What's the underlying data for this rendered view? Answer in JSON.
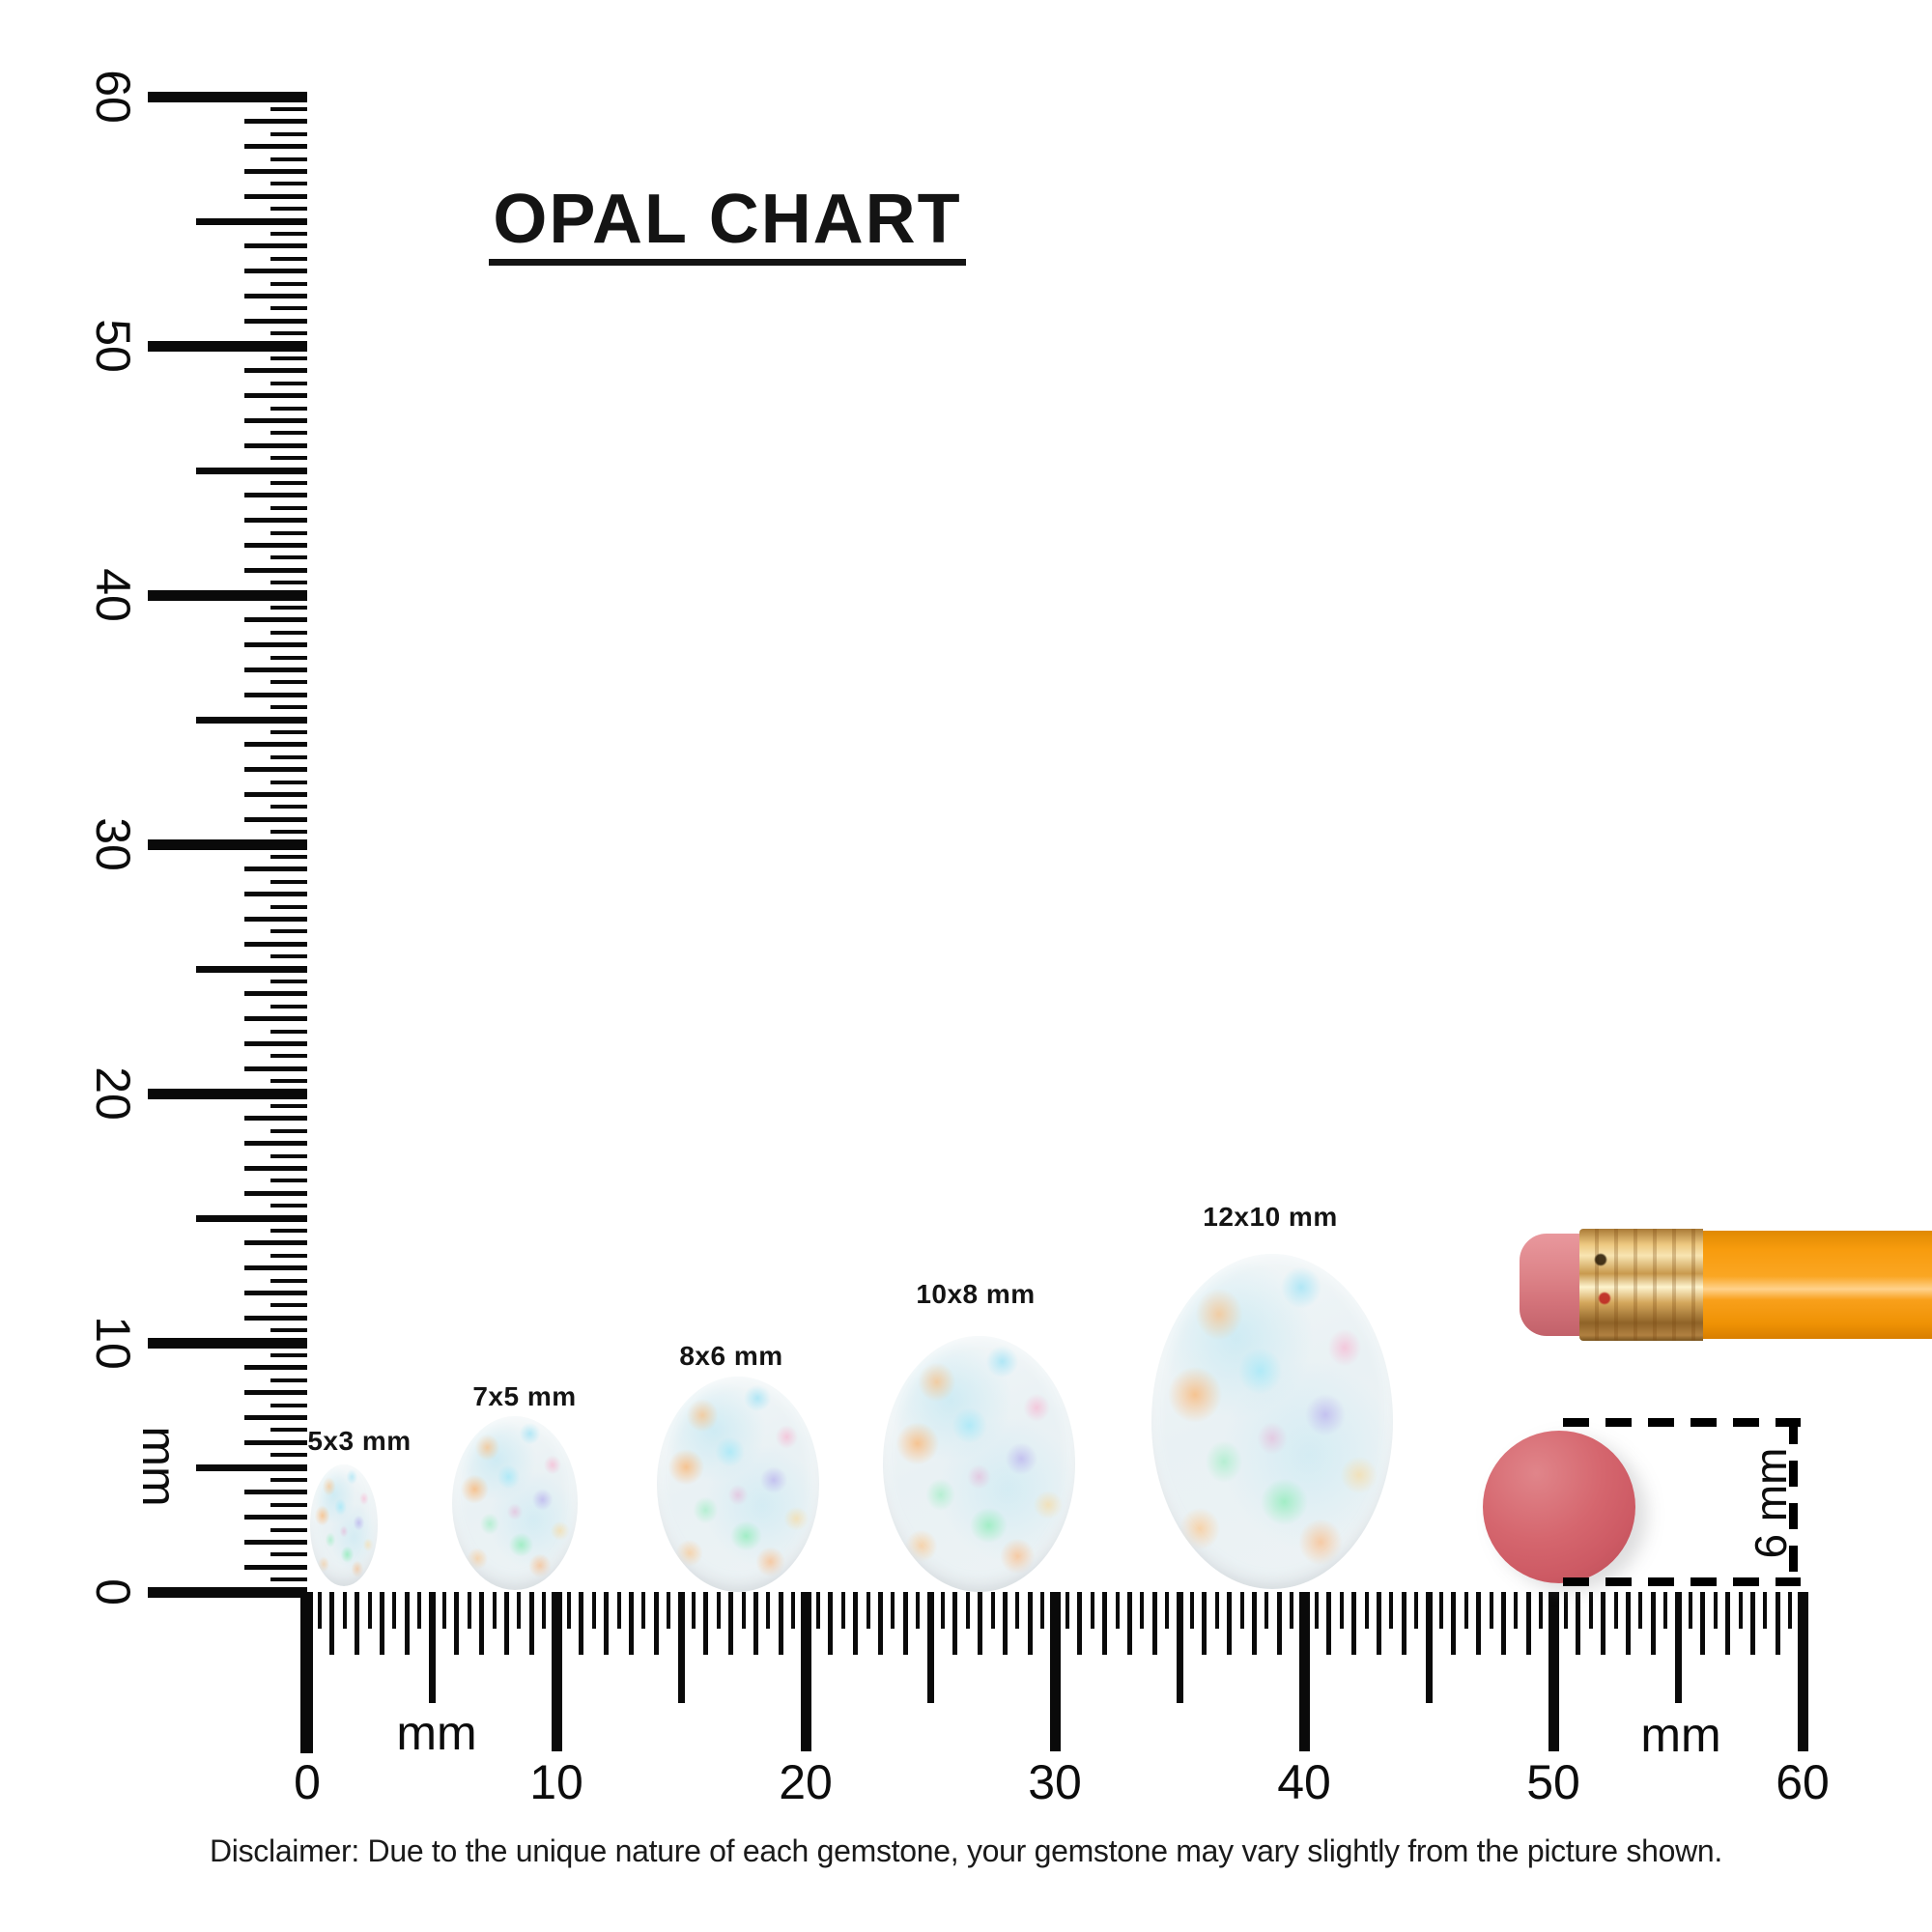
{
  "title": "OPAL CHART",
  "rulers": {
    "vertical": {
      "unit": "mm",
      "numbers": [
        "0",
        "10",
        "20",
        "30",
        "40",
        "50",
        "60"
      ],
      "range_mm": [
        0,
        60
      ]
    },
    "horizontal": {
      "unit_left": "mm",
      "unit_right": "mm",
      "numbers": [
        "0",
        "10",
        "20",
        "30",
        "40",
        "50",
        "60"
      ],
      "range_mm": [
        0,
        60
      ]
    }
  },
  "opals": [
    {
      "label": "5x3 mm",
      "length_mm": 5,
      "width_mm": 3
    },
    {
      "label": "7x5 mm",
      "length_mm": 7,
      "width_mm": 5
    },
    {
      "label": "8x6 mm",
      "length_mm": 8,
      "width_mm": 6
    },
    {
      "label": "10x8 mm",
      "length_mm": 10,
      "width_mm": 8
    },
    {
      "label": "12x10 mm",
      "length_mm": 12,
      "width_mm": 10
    }
  ],
  "reference": {
    "eraser_diameter_label": "6 mm",
    "eraser_circle_color": "#d2606a",
    "pencil_body_color": "#f89c0e",
    "pencil_ferrule_color": "#d9a458",
    "pencil_eraser_color": "#dd868c"
  },
  "opal_palette": [
    "#edf3f5",
    "#b8e4ee",
    "#f5a95c",
    "#7de8a8",
    "#b9a8e8",
    "#f3b9d4",
    "#f5e08a"
  ],
  "disclaimer": "Disclaimer: Due to the unique nature of each gemstone, your gemstone may vary slightly from the picture shown."
}
